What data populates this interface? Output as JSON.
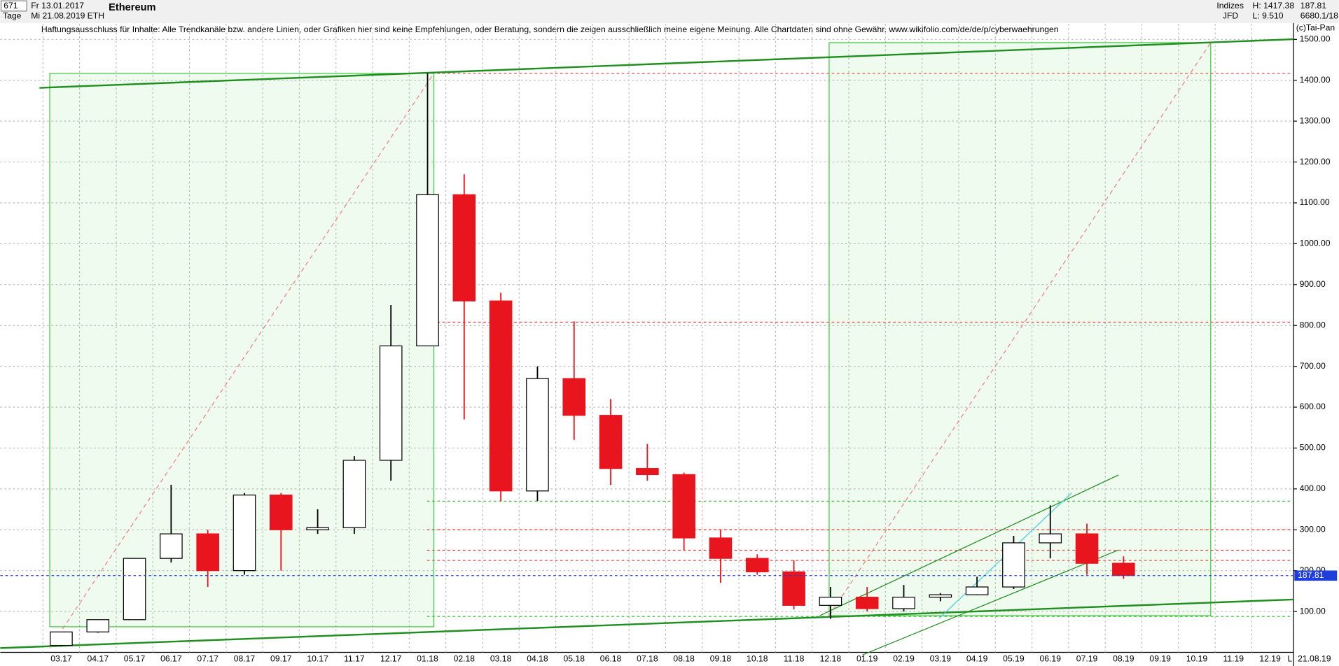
{
  "chart_data": {
    "type": "candlestick",
    "title": "Ethereum",
    "info": {
      "count": "671",
      "from": "Fr 13.01.2017",
      "period": "Tage",
      "to": "Mi 21.08.2019",
      "symbol": "ETH",
      "group": "Indizes",
      "source": "JFD",
      "high": "H: 1417.38",
      "low": "L: 9.510",
      "ref": "6680.1/18",
      "copyright": "(c)Tai-Pan",
      "date": "21.08.19",
      "scale_mode": "L"
    },
    "disclaimer": "Haftungsausschluss für Inhalte: Alle Trendkanäle bzw. andere Linien, oder Grafiken hier sind keine Empfehlungen, oder Beratung, sondern die zeigen ausschließlich meine eigene Meinung. Alle Chartdaten sind ohne Gewähr.  www.wikifolio.com/de/de/p/cyberwaehrungen",
    "categories": [
      "03.17",
      "04.17",
      "05.17",
      "06.17",
      "07.17",
      "08.17",
      "09.17",
      "10.17",
      "11.17",
      "12.17",
      "01.18",
      "02.18",
      "03.18",
      "04.18",
      "05.18",
      "06.18",
      "07.18",
      "08.18",
      "09.18",
      "10.18",
      "11.18",
      "12.18",
      "01.19",
      "02.19",
      "03.19",
      "04.19",
      "05.19",
      "06.19",
      "07.19",
      "08.19",
      "09.19",
      "10.19",
      "11.19",
      "12.19"
    ],
    "open": [
      17,
      50,
      80,
      230,
      290,
      200,
      385,
      300,
      305,
      470,
      750,
      1120,
      860,
      395,
      670,
      580,
      450,
      435,
      280,
      230,
      197,
      115,
      135,
      107,
      135,
      141,
      160,
      268,
      290,
      218,
      null,
      null,
      null,
      null
    ],
    "high": [
      50,
      80,
      230,
      410,
      300,
      390,
      390,
      350,
      480,
      850,
      1417,
      1170,
      880,
      700,
      810,
      620,
      510,
      440,
      300,
      240,
      225,
      160,
      160,
      165,
      145,
      185,
      285,
      360,
      315,
      235,
      null,
      null,
      null,
      null
    ],
    "low": [
      15,
      48,
      80,
      220,
      160,
      190,
      200,
      290,
      290,
      420,
      750,
      570,
      370,
      370,
      520,
      410,
      420,
      250,
      170,
      190,
      105,
      82,
      100,
      100,
      125,
      140,
      155,
      230,
      190,
      180,
      null,
      null,
      null,
      null
    ],
    "close": [
      50,
      80,
      230,
      290,
      200,
      385,
      300,
      305,
      470,
      750,
      1120,
      860,
      395,
      670,
      580,
      450,
      435,
      280,
      230,
      197,
      115,
      135,
      107,
      135,
      141,
      160,
      268,
      290,
      218,
      188,
      null,
      null,
      null,
      null
    ],
    "up_color": "#000000",
    "down_color": "#e8141e",
    "last_price": 187.81,
    "last_price_color": "#1f3fdc",
    "levels": [
      {
        "value": 1417,
        "color": "#e03030"
      },
      {
        "value": 808,
        "color": "#e03030"
      },
      {
        "value": 300,
        "color": "#e03030"
      },
      {
        "value": 250,
        "color": "#e03030"
      },
      {
        "value": 225,
        "color": "#e03030"
      },
      {
        "value": 370,
        "color": "#30c030"
      },
      {
        "value": 88,
        "color": "#30c030"
      }
    ],
    "ylim": [
      0,
      1538
    ],
    "yticks": [
      {
        "value": 100,
        "label": "100.00"
      },
      {
        "value": 200,
        "label": "200.00"
      },
      {
        "value": 300,
        "label": "300.00"
      },
      {
        "value": 400,
        "label": "400.00"
      },
      {
        "value": 500,
        "label": "500.00"
      },
      {
        "value": 600,
        "label": "600.00"
      },
      {
        "value": 700,
        "label": "700.00"
      },
      {
        "value": 800,
        "label": "800.00"
      },
      {
        "value": 900,
        "label": "900.00"
      },
      {
        "value": 1000,
        "label": "1000.00"
      },
      {
        "value": 1100,
        "label": "1100.00"
      },
      {
        "value": 1200,
        "label": "1200.00"
      },
      {
        "value": 1300,
        "label": "1300.00"
      },
      {
        "value": 1400,
        "label": "1400.00"
      },
      {
        "value": 1500,
        "label": "1500.00"
      }
    ],
    "grid": true
  }
}
